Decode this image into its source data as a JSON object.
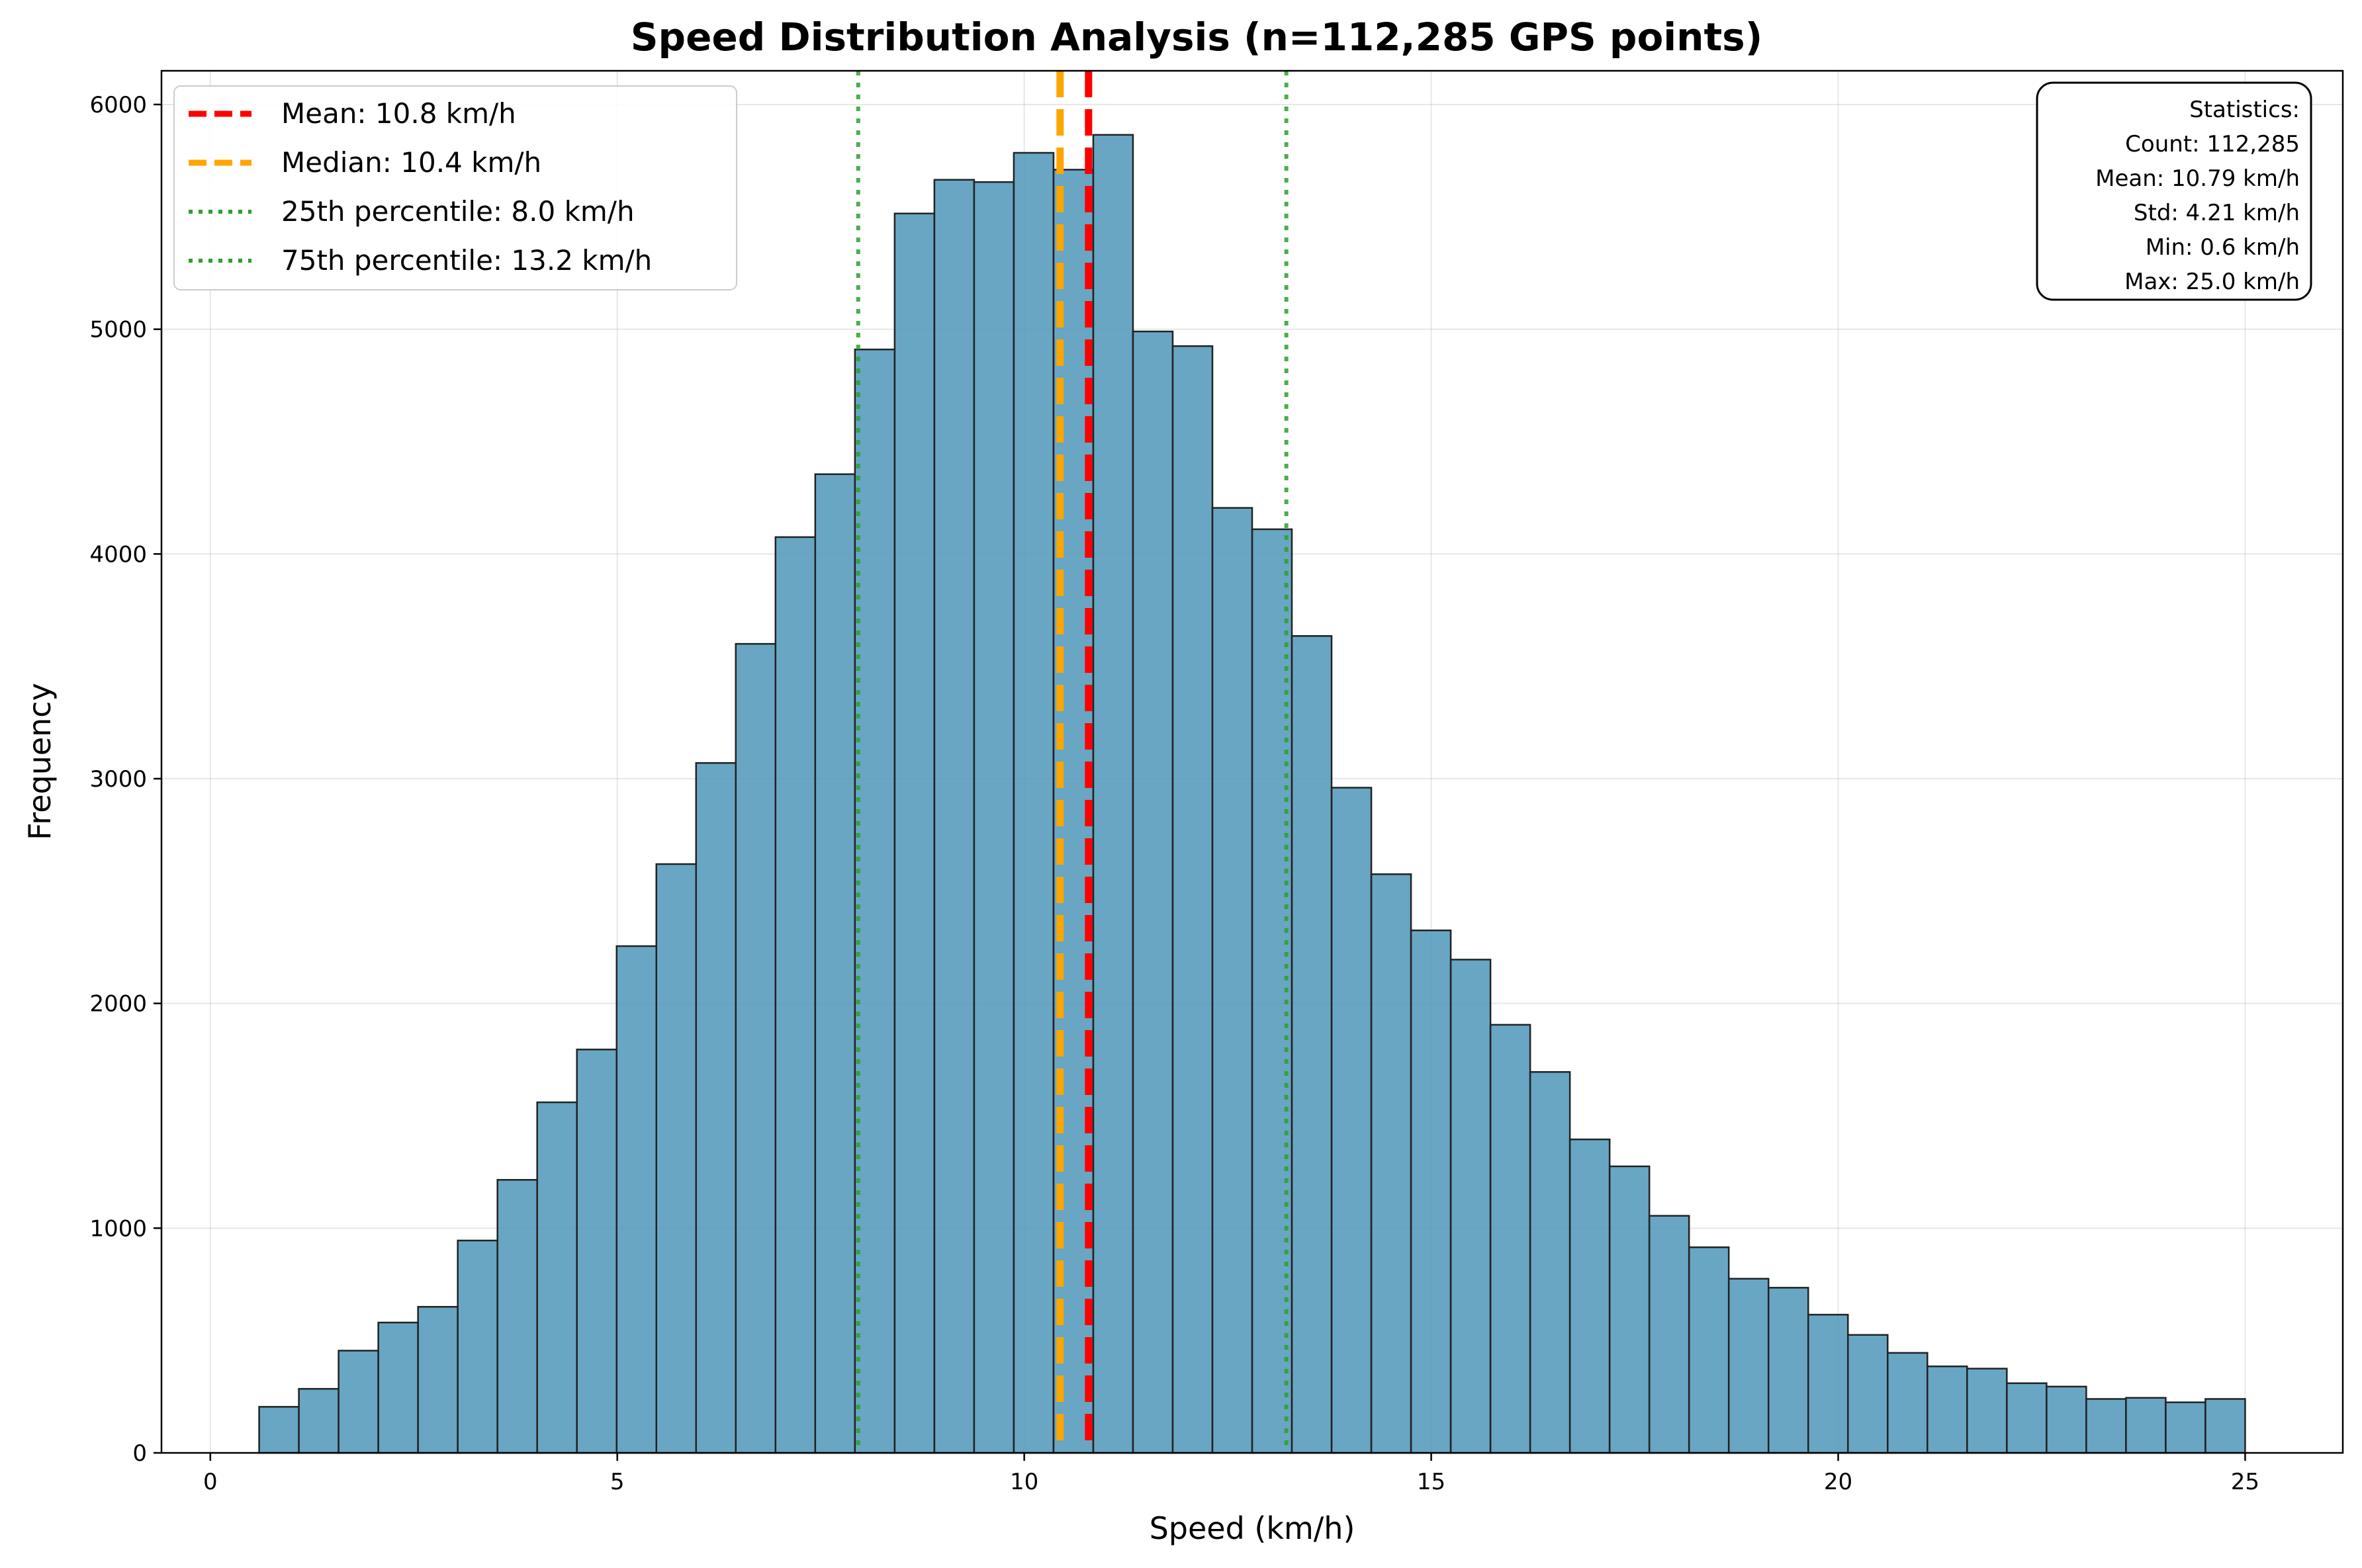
{
  "chart_data": {
    "type": "bar",
    "title": "Speed Distribution Analysis (n=112,285 GPS points)",
    "xlabel": "Speed (km/h)",
    "ylabel": "Frequency",
    "xlim": [
      -0.6,
      26.2
    ],
    "ylim": [
      0,
      6150
    ],
    "xticks": [
      0,
      5,
      10,
      15,
      20,
      25
    ],
    "yticks": [
      0,
      1000,
      2000,
      3000,
      4000,
      5000,
      6000
    ],
    "grid": true,
    "bin_start": 0.6,
    "bin_width": 0.488,
    "values": [
      205,
      285,
      455,
      580,
      650,
      945,
      1215,
      1560,
      1795,
      2255,
      2620,
      3070,
      3600,
      4075,
      4355,
      4910,
      5515,
      5665,
      5655,
      5785,
      5710,
      5865,
      4990,
      4925,
      4205,
      4110,
      3635,
      2960,
      2575,
      2325,
      2195,
      1905,
      1695,
      1395,
      1275,
      1055,
      915,
      775,
      735,
      615,
      525,
      445,
      385,
      375,
      310,
      295,
      240,
      245,
      225,
      240
    ],
    "bar_color": "#4e97b8",
    "reference_lines": [
      {
        "label": "Mean: 10.8 km/h",
        "x": 10.79,
        "color": "#ff0000",
        "style": "dashed"
      },
      {
        "label": "Median: 10.4 km/h",
        "x": 10.44,
        "color": "#ffa500",
        "style": "dashed"
      },
      {
        "label": "25th percentile: 8.0 km/h",
        "x": 7.96,
        "color": "#2ca02c",
        "style": "dotted"
      },
      {
        "label": "75th percentile: 13.2 km/h",
        "x": 13.22,
        "color": "#2ca02c",
        "style": "dotted"
      }
    ],
    "legend_position": "top-left",
    "stats_box": {
      "position": "top-right",
      "lines": [
        "Statistics:",
        "Count: 112,285",
        "Mean: 10.79 km/h",
        "Std: 4.21 km/h",
        "Min: 0.6 km/h",
        "Max: 25.0 km/h"
      ]
    }
  }
}
